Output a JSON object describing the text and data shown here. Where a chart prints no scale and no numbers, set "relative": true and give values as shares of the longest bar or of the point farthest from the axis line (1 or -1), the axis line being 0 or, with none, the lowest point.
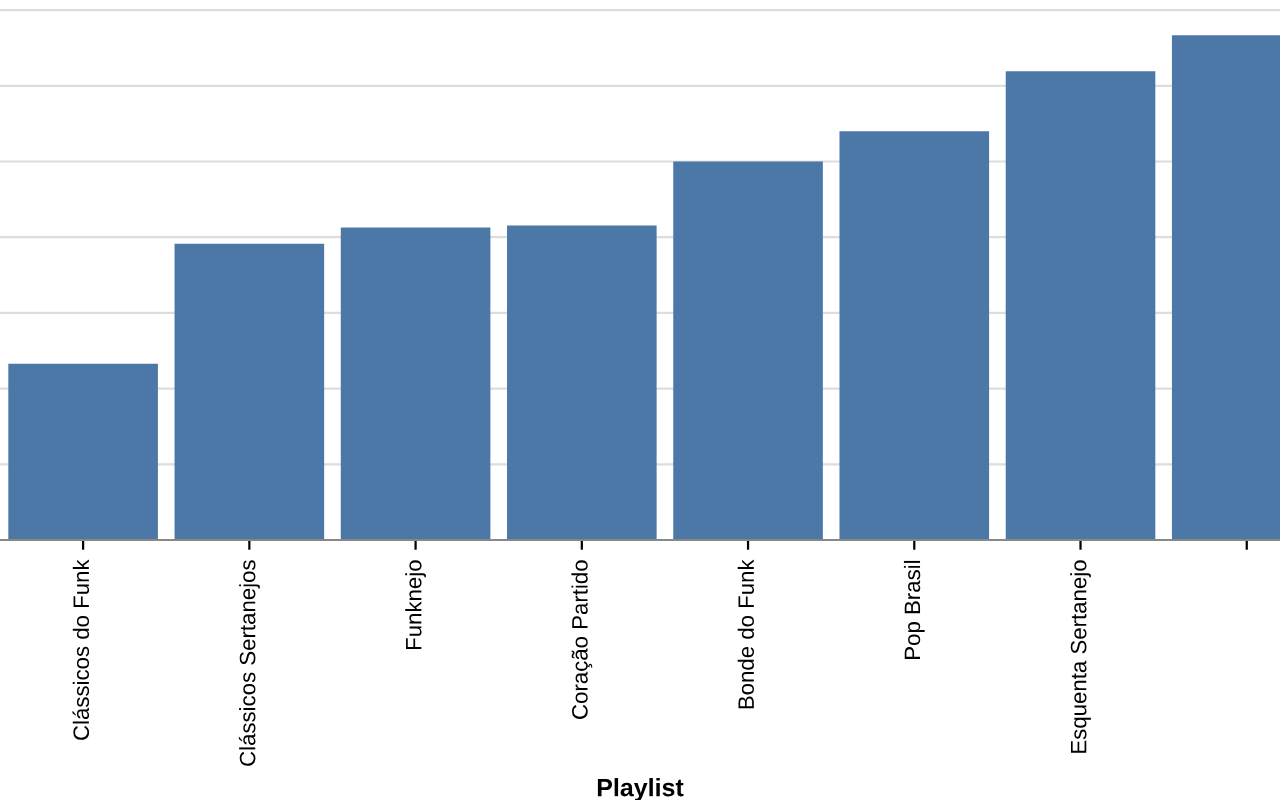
{
  "chart_data": {
    "type": "bar",
    "xlabel": "Playlist",
    "categories": [
      "Clássicos do Funk",
      "Clássicos Sertanejos",
      "Funknejo",
      "Coração Partido",
      "Bonde do Funk",
      "Pop Brasil",
      "Esquenta Sertanejo",
      null
    ],
    "values": [
      0.349,
      0.587,
      0.619,
      0.623,
      0.75,
      0.81,
      0.929,
      1.0
    ],
    "color": "#4c78a8",
    "relative": true,
    "grid": "y"
  }
}
